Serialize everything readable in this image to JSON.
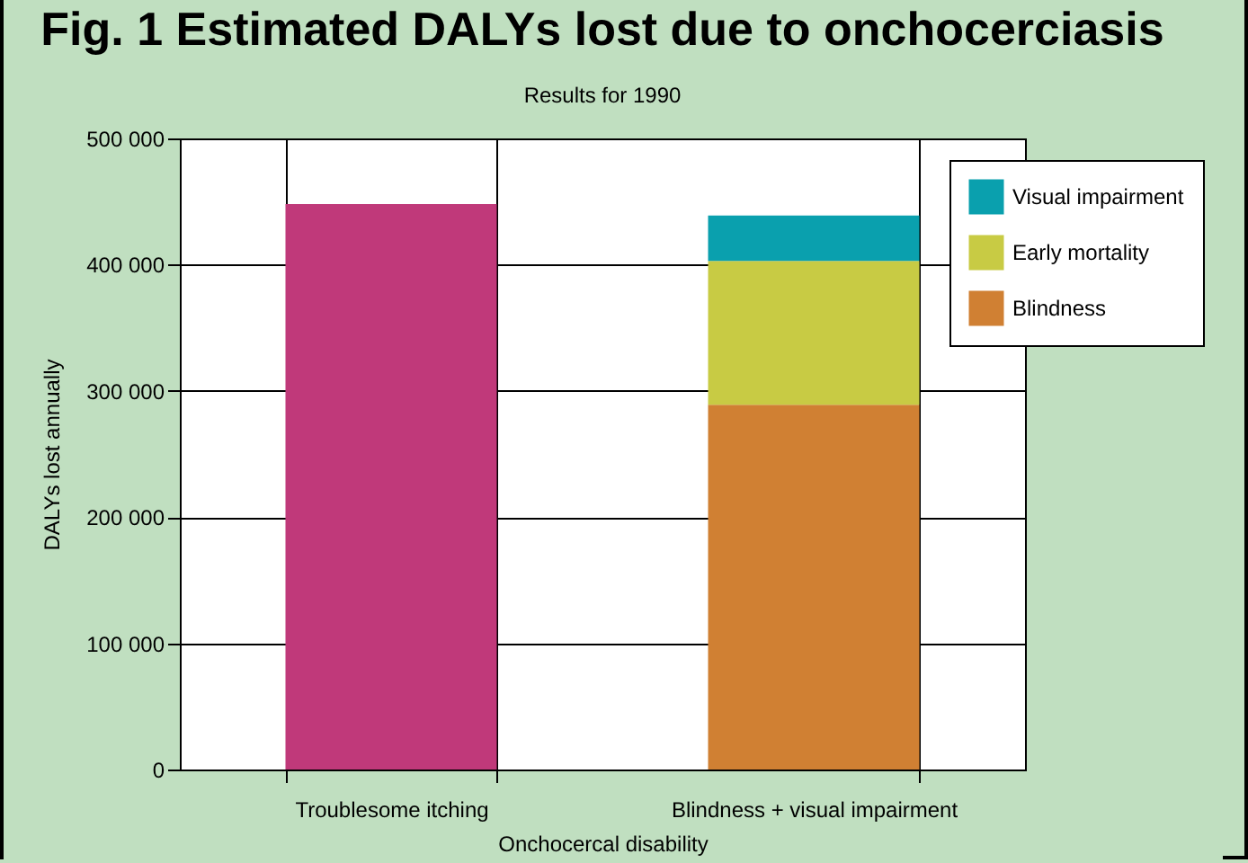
{
  "chart_data": {
    "type": "bar",
    "title": "Fig. 1 Estimated DALYs lost due to onchocerciasis",
    "subtitle": "Results for 1990",
    "xlabel": "Onchocercal disability",
    "ylabel": "DALYs lost annually",
    "categories": [
      "Troublesome itching",
      "Blindness + visual impairment"
    ],
    "stacked": true,
    "series": [
      {
        "color": "#c0397a",
        "values": [
          448000,
          null
        ]
      },
      {
        "name": "Blindness",
        "color": "#d08033",
        "values": [
          null,
          289000
        ]
      },
      {
        "name": "Early mortality",
        "color": "#c8cb44",
        "values": [
          null,
          114000
        ]
      },
      {
        "name": "Visual impairment",
        "color": "#0aa0ae",
        "values": [
          null,
          36000
        ]
      }
    ],
    "ylim": [
      0,
      500000
    ],
    "yticks": [
      {
        "value": 0,
        "label": "0"
      },
      {
        "value": 100000,
        "label": "100 000"
      },
      {
        "value": 200000,
        "label": "200 000"
      },
      {
        "value": 300000,
        "label": "300 000"
      },
      {
        "value": 400000,
        "label": "400 000"
      },
      {
        "value": 500000,
        "label": "500 000"
      }
    ],
    "grid": true,
    "legend": "top right"
  }
}
